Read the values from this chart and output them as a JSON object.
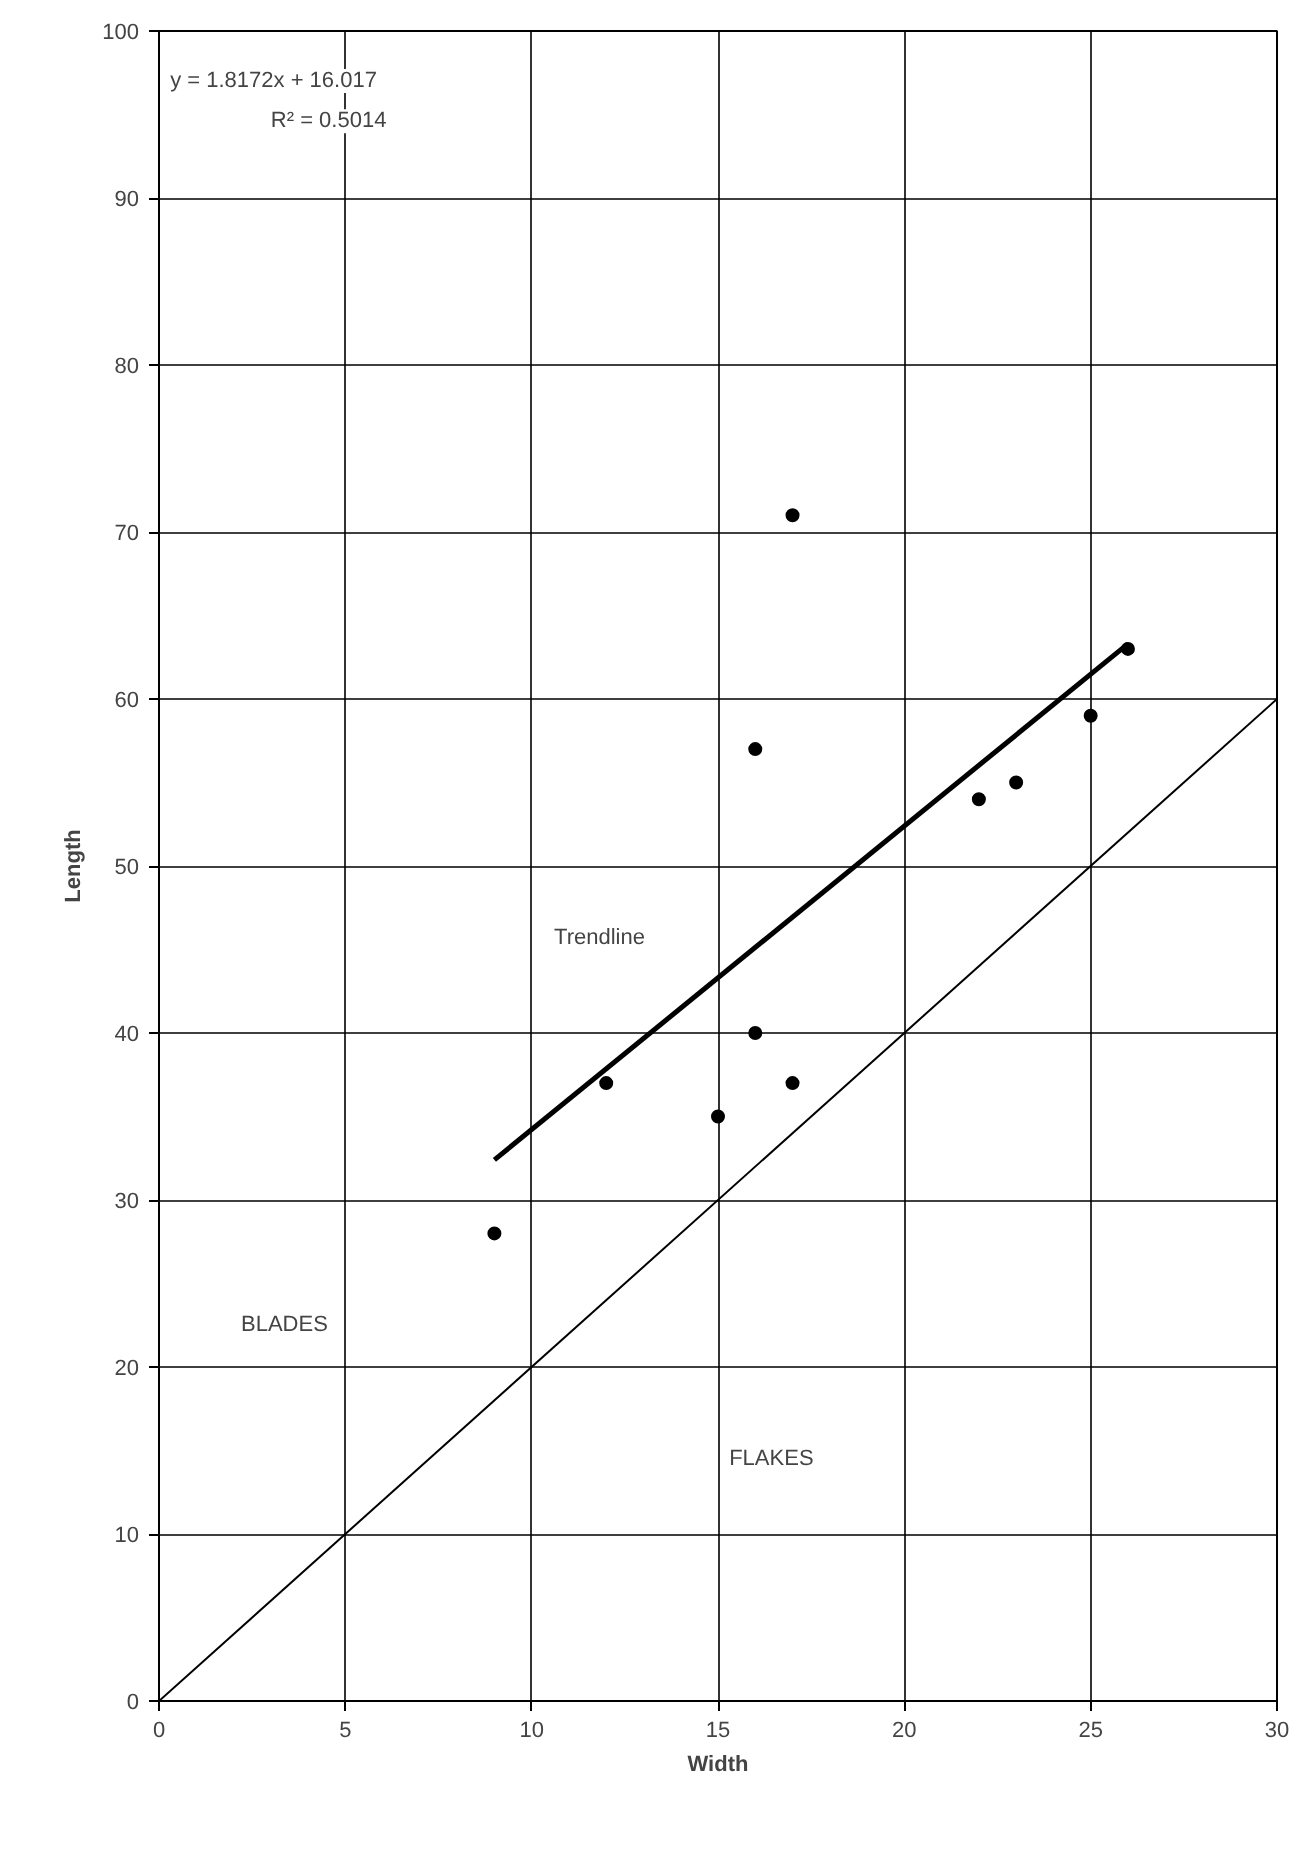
{
  "chart_data": {
    "type": "scatter",
    "xlabel": "Width",
    "ylabel": "Length",
    "xlim": [
      0,
      30
    ],
    "ylim": [
      0,
      100
    ],
    "xticks": [
      0,
      5,
      10,
      15,
      20,
      25,
      30
    ],
    "yticks": [
      0,
      10,
      20,
      30,
      40,
      50,
      60,
      70,
      80,
      90,
      100
    ],
    "grid": true,
    "marker": "circle",
    "x": [
      9,
      12,
      15,
      16,
      16,
      17,
      17,
      22,
      23,
      25,
      26
    ],
    "series": [
      {
        "color": "#000000",
        "values": [
          28,
          37,
          35,
          57,
          40,
          71,
          37,
          54,
          55,
          59,
          63
        ]
      },
      {
        "type": "line",
        "color": "#000000",
        "x": [
          9,
          26
        ],
        "values": [
          32.4,
          63.3
        ],
        "marker": "none"
      },
      {
        "type": "line",
        "color": "#000000",
        "x": [
          0,
          30
        ],
        "values": [
          0,
          60
        ],
        "marker": "none"
      }
    ],
    "annotations": [
      "y = 1.8172x + 16.017",
      "R² = 0.5014",
      "Trendline",
      "BLADES",
      "FLAKES"
    ]
  }
}
